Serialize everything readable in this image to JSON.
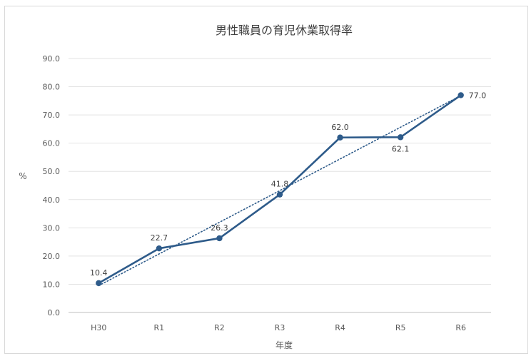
{
  "chart_data": {
    "type": "line",
    "title": "男性職員の育児休業取得率",
    "xlabel": "年度",
    "ylabel": "%",
    "categories": [
      "H30",
      "R1",
      "R2",
      "R3",
      "R4",
      "R5",
      "R6"
    ],
    "series": [
      {
        "values": [
          10.4,
          22.7,
          26.3,
          41.8,
          62.0,
          62.1,
          77.0
        ],
        "color": "#2e5b8a",
        "marker": "circle"
      }
    ],
    "data_labels": [
      "10.4",
      "22.7",
      "26.3",
      "41.8",
      "62.0",
      "62.1",
      "77.0"
    ],
    "trendline": {
      "type": "linear",
      "style": "dotted",
      "color": "#2e5b8a"
    },
    "ylim": [
      0,
      90
    ],
    "yticks": [
      "0.0",
      "10.0",
      "20.0",
      "30.0",
      "40.0",
      "50.0",
      "60.0",
      "70.0",
      "80.0",
      "90.0"
    ],
    "grid": true,
    "legend": "none"
  }
}
